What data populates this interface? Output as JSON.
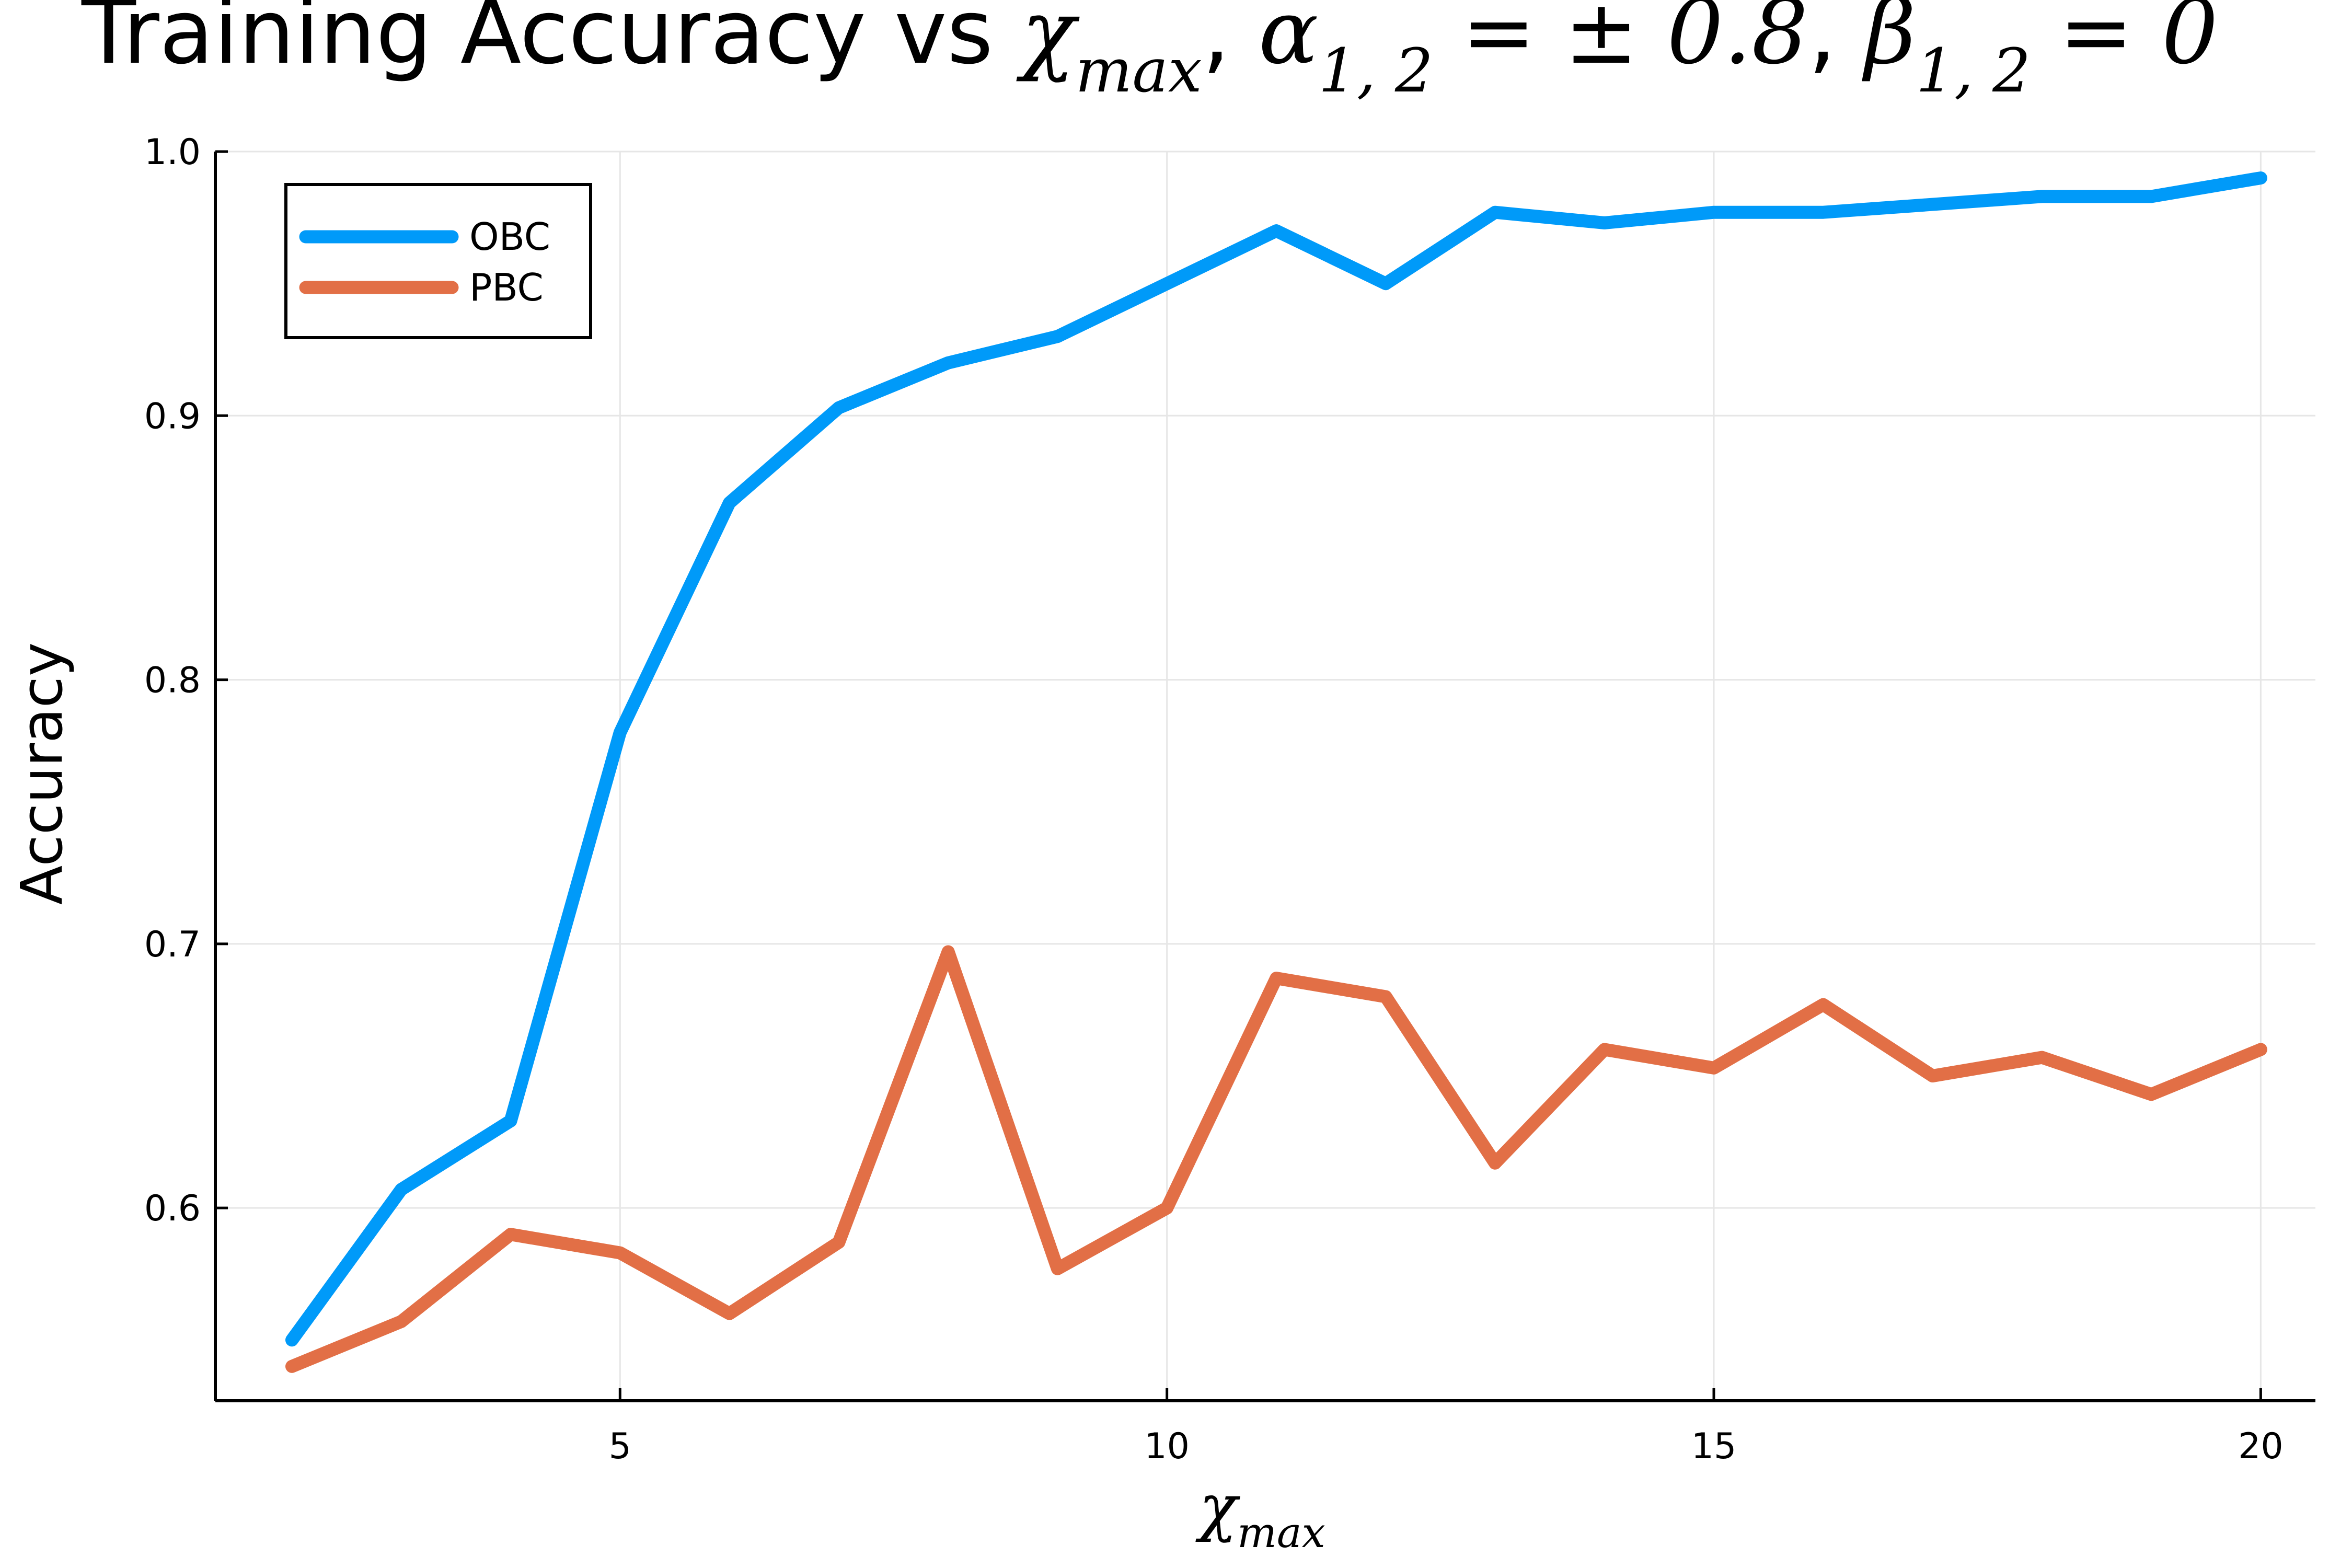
{
  "chart_data": {
    "type": "line",
    "title": {
      "text": "Training Accuracy vs ",
      "math": [
        {
          "base": "χ",
          "sub": "max"
        },
        {
          "sep": ", "
        },
        {
          "base": "α",
          "sub": "1, 2",
          "tail": " =  ± 0.8"
        },
        {
          "sep": ", "
        },
        {
          "base": "β",
          "sub": "1, 2",
          "tail": " = 0"
        }
      ]
    },
    "xlabel": {
      "base": "χ",
      "sub": "max"
    },
    "ylabel": "Accuracy",
    "xlim": [
      1.3,
      20.5
    ],
    "ylim": [
      0.527,
      1.0
    ],
    "xticks": [
      5,
      10,
      15,
      20
    ],
    "yticks": [
      0.6,
      0.7,
      0.8,
      0.9,
      1.0
    ],
    "ytick_labels": [
      "0.6",
      "0.7",
      "0.8",
      "0.9",
      "1.0"
    ],
    "grid": true,
    "legend": {
      "placement": "top-left"
    },
    "x": [
      2,
      3,
      4,
      5,
      6,
      7,
      8,
      9,
      10,
      11,
      12,
      13,
      14,
      15,
      16,
      17,
      18,
      19,
      20
    ],
    "series": [
      {
        "name": "OBC",
        "color": "#009af9",
        "values": [
          0.55,
          0.607,
          0.633,
          0.78,
          0.867,
          0.903,
          0.92,
          0.93,
          0.95,
          0.97,
          0.95,
          0.977,
          0.973,
          0.977,
          0.977,
          0.98,
          0.983,
          0.983,
          0.99
        ]
      },
      {
        "name": "PBC",
        "color": "#e26f46",
        "values": [
          0.54,
          0.557,
          0.59,
          0.583,
          0.56,
          0.587,
          0.697,
          0.577,
          0.6,
          0.687,
          0.68,
          0.617,
          0.66,
          0.653,
          0.677,
          0.65,
          0.657,
          0.643,
          0.66
        ]
      }
    ]
  }
}
